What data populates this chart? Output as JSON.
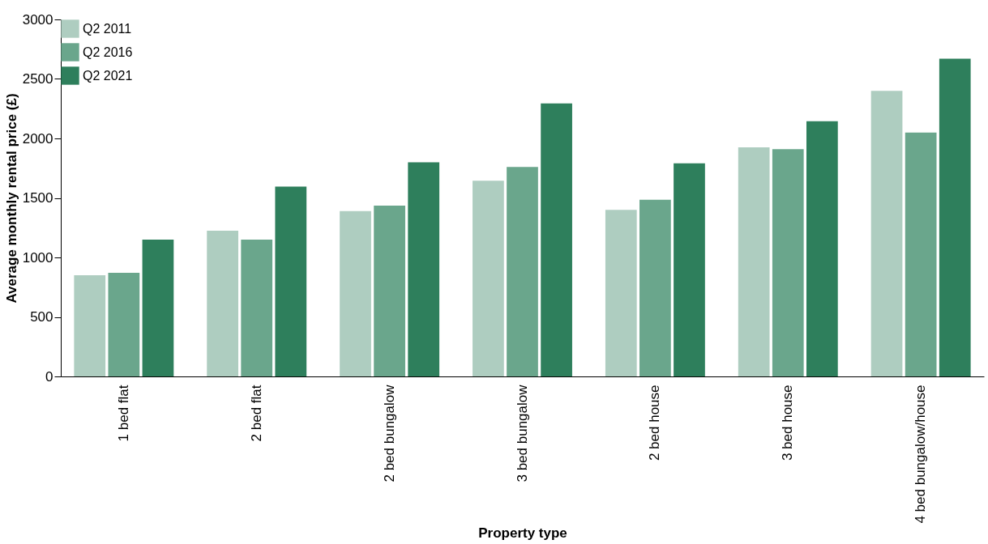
{
  "chart_data": {
    "type": "bar",
    "xlabel": "Property type",
    "ylabel": "Average monthly rental price (£)",
    "categories": [
      "1 bed flat",
      "2 bed flat",
      "2 bed bungalow",
      "3 bed bungalow",
      "2 bed house",
      "3 bed house",
      "4 bed bungalow/house"
    ],
    "series": [
      {
        "name": "Q2 2011",
        "color": "#aecdc0",
        "values": [
          850,
          1225,
          1390,
          1645,
          1400,
          1925,
          2400
        ]
      },
      {
        "name": "Q2 2016",
        "color": "#6aa68c",
        "values": [
          870,
          1150,
          1435,
          1760,
          1485,
          1910,
          2050
        ]
      },
      {
        "name": "Q2 2021",
        "color": "#2e7f5c",
        "values": [
          1150,
          1595,
          1800,
          2295,
          1790,
          2145,
          2670
        ]
      }
    ],
    "ylim": [
      0,
      3000
    ],
    "yticks": [
      0,
      500,
      1000,
      1500,
      2000,
      2500,
      3000
    ],
    "grid": false,
    "legend": "top left"
  }
}
